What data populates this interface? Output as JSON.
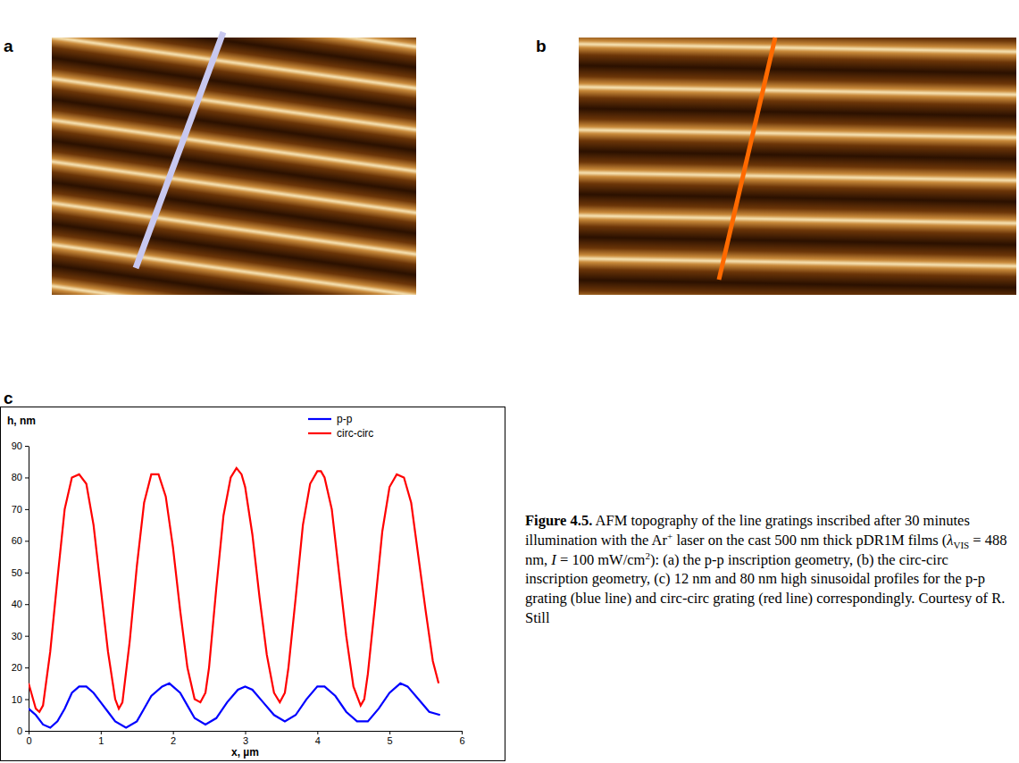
{
  "panels": [
    {
      "label": "a"
    },
    {
      "label": "b"
    },
    {
      "label": "c"
    }
  ],
  "caption": {
    "runs": [
      {
        "text": "Figure 4.5.",
        "style": "bold"
      },
      {
        "text": " AFM topography of the line gratings inscribed after 30 minutes illumination with the Ar",
        "style": "normal"
      },
      {
        "text": "+",
        "style": "sup"
      },
      {
        "text": " laser on the cast 500 nm thick pDR1M films (",
        "style": "normal"
      },
      {
        "text": "λ",
        "style": "italic"
      },
      {
        "text": "VIS",
        "style": "sub"
      },
      {
        "text": " = 488 nm, ",
        "style": "normal"
      },
      {
        "text": "I",
        "style": "italic"
      },
      {
        "text": " = 100 mW/cm",
        "style": "normal"
      },
      {
        "text": "2",
        "style": "sup"
      },
      {
        "text": "): (a) the p-p inscription geometry, (b) the circ-circ inscription geometry, (c) 12 nm and 80 nm high sinusoidal profiles for the p-p grating (blue line) and circ-circ grating (red line) correspondingly. Courtesy of R. Still",
        "style": "normal"
      }
    ]
  },
  "chart_data": {
    "type": "line",
    "x_label": "x, µm",
    "y_label": "h, nm",
    "xlim": [
      0,
      6
    ],
    "xticks": [
      0,
      1,
      2,
      3,
      4,
      5,
      6
    ],
    "ylim": [
      0,
      90
    ],
    "yticks": [
      0,
      10,
      20,
      30,
      40,
      50,
      60,
      70,
      80,
      90
    ],
    "grid": false,
    "legend": "top-right",
    "series": [
      {
        "name": "p-p",
        "color": "#0000ff",
        "x": [
          0,
          0.1,
          0.2,
          0.3,
          0.4,
          0.5,
          0.6,
          0.7,
          0.8,
          0.9,
          1.0,
          1.1,
          1.2,
          1.35,
          1.5,
          1.6,
          1.7,
          1.85,
          1.95,
          2.1,
          2.2,
          2.3,
          2.45,
          2.6,
          2.75,
          2.9,
          3.0,
          3.1,
          3.25,
          3.4,
          3.55,
          3.7,
          3.85,
          4.0,
          4.1,
          4.25,
          4.4,
          4.55,
          4.7,
          4.85,
          5.0,
          5.15,
          5.25,
          5.4,
          5.55,
          5.7
        ],
        "values": [
          7,
          5,
          2,
          1,
          3,
          7,
          12,
          14,
          14,
          12,
          9,
          6,
          3,
          1,
          3,
          7,
          11,
          14,
          15,
          12,
          8,
          4,
          2,
          4,
          9,
          13,
          14,
          13,
          9,
          5,
          3,
          5,
          10,
          14,
          14,
          11,
          6,
          3,
          3,
          7,
          12,
          15,
          14,
          10,
          6,
          5
        ]
      },
      {
        "name": "circ-circ",
        "color": "#ff0000",
        "x": [
          0,
          0.1,
          0.15,
          0.2,
          0.3,
          0.4,
          0.5,
          0.6,
          0.7,
          0.8,
          0.9,
          1.0,
          1.1,
          1.2,
          1.25,
          1.3,
          1.4,
          1.5,
          1.6,
          1.7,
          1.8,
          1.9,
          2.0,
          2.1,
          2.2,
          2.3,
          2.38,
          2.45,
          2.5,
          2.6,
          2.7,
          2.8,
          2.88,
          2.95,
          3.0,
          3.1,
          3.2,
          3.3,
          3.4,
          3.48,
          3.55,
          3.6,
          3.7,
          3.8,
          3.9,
          4.0,
          4.05,
          4.1,
          4.2,
          4.3,
          4.4,
          4.5,
          4.6,
          4.65,
          4.7,
          4.8,
          4.9,
          5.0,
          5.1,
          5.2,
          5.3,
          5.4,
          5.5,
          5.6,
          5.68
        ],
        "values": [
          15,
          7,
          6,
          8,
          25,
          48,
          70,
          80,
          81,
          78,
          65,
          45,
          25,
          10,
          7,
          9,
          28,
          52,
          72,
          81,
          81,
          74,
          58,
          38,
          20,
          10,
          9,
          12,
          20,
          45,
          68,
          80,
          83,
          81,
          77,
          62,
          42,
          24,
          12,
          9,
          12,
          20,
          42,
          65,
          78,
          82,
          82,
          80,
          70,
          50,
          30,
          14,
          8,
          10,
          18,
          40,
          63,
          77,
          81,
          80,
          72,
          55,
          38,
          22,
          15
        ]
      }
    ]
  }
}
